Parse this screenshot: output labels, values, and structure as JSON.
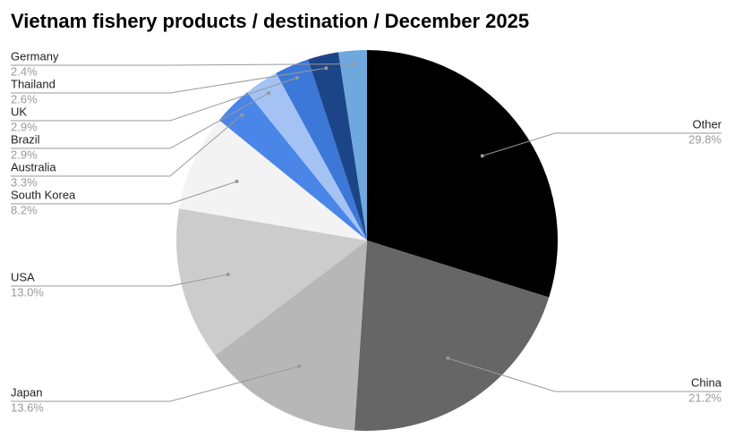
{
  "chart_data": {
    "type": "pie",
    "title": "Vietnam fishery products / destination / December 2025",
    "categories": [
      "Other",
      "China",
      "Japan",
      "USA",
      "South Korea",
      "Australia",
      "Brazil",
      "UK",
      "Thailand",
      "Germany"
    ],
    "values": [
      29.8,
      21.2,
      13.6,
      13.0,
      8.2,
      3.3,
      2.9,
      2.9,
      2.6,
      2.4
    ],
    "value_labels": [
      "29.8%",
      "21.2%",
      "13.6%",
      "13.0%",
      "8.2%",
      "3.3%",
      "2.9%",
      "2.9%",
      "2.6%",
      "2.4%"
    ],
    "colors": [
      "#000000",
      "#666666",
      "#b7b7b7",
      "#cccccc",
      "#f3f3f3",
      "#4a86e8",
      "#a4c2f4",
      "#3c78d8",
      "#1c4587",
      "#6fa8dc"
    ]
  }
}
